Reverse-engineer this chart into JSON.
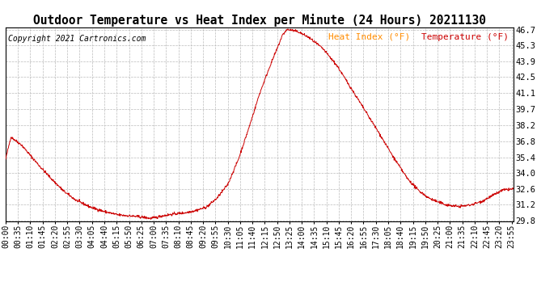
{
  "title": "Outdoor Temperature vs Heat Index per Minute (24 Hours) 20211130",
  "copyright": "Copyright 2021 Cartronics.com",
  "legend_heat": "Heat Index (°F)",
  "legend_temp": "Temperature (°F)",
  "legend_heat_color": "#FF8C00",
  "legend_temp_color": "#CC0000",
  "line_color": "#CC0000",
  "ylim": [
    29.8,
    46.7
  ],
  "yticks": [
    29.8,
    31.2,
    32.6,
    34.0,
    35.4,
    36.8,
    38.2,
    39.7,
    41.1,
    42.5,
    43.9,
    45.3,
    46.7
  ],
  "bg_color": "#ffffff",
  "grid_color": "#bbbbbb",
  "title_fontsize": 10.5,
  "copyright_fontsize": 7,
  "legend_fontsize": 8,
  "tick_fontsize": 7,
  "ytick_fontsize": 7.5
}
